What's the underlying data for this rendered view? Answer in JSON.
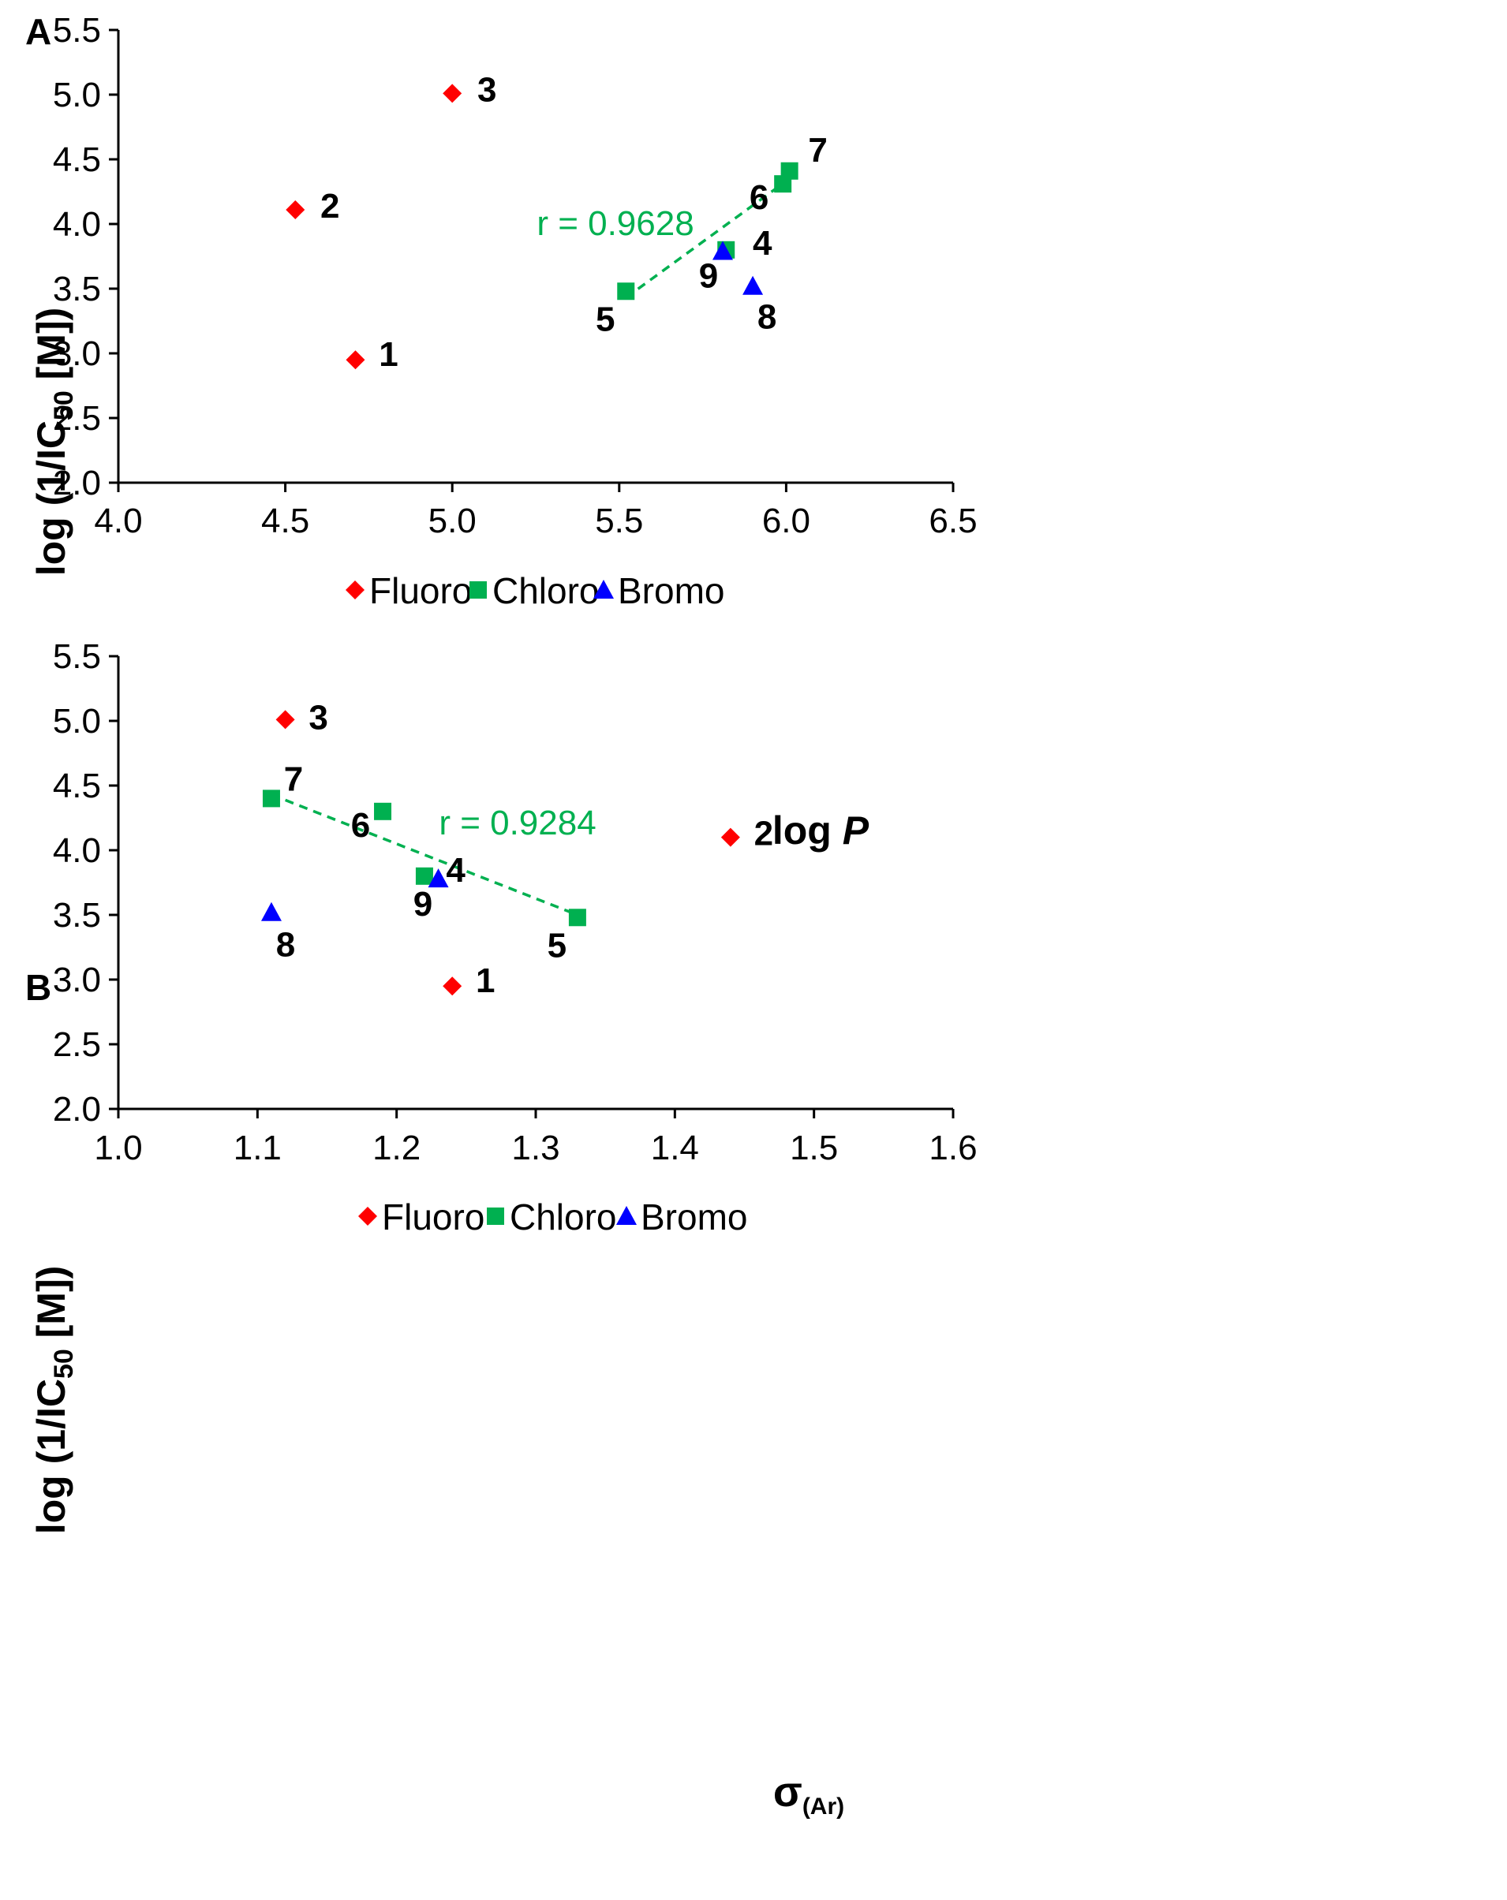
{
  "colors": {
    "fluoro": "#ff0000",
    "chloro": "#00b050",
    "bromo": "#0000ff",
    "trend": "#00b050"
  },
  "legend": [
    "Fluoro",
    "Chloro",
    "Bromo"
  ],
  "chart_data": [
    {
      "type": "scatter",
      "panel": "A",
      "xlabel_main": "log ",
      "xlabel_italic": "P",
      "ylabel_parts": [
        "log (1/IC",
        "50",
        " [M])"
      ],
      "xlim": [
        4.0,
        6.5
      ],
      "ylim": [
        2.0,
        5.5
      ],
      "x_ticks": [
        "4.0",
        "4.5",
        "5.0",
        "5.5",
        "6.0",
        "6.5"
      ],
      "y_ticks": [
        "2.0",
        "2.5",
        "3.0",
        "3.5",
        "4.0",
        "4.5",
        "5.0",
        "5.5"
      ],
      "series": [
        {
          "name": "Fluoro",
          "marker": "diamond",
          "points": [
            {
              "x": 4.71,
              "y": 2.95,
              "label": "1"
            },
            {
              "x": 4.53,
              "y": 4.11,
              "label": "2"
            },
            {
              "x": 5.0,
              "y": 5.01,
              "label": "3"
            }
          ]
        },
        {
          "name": "Chloro",
          "marker": "square",
          "points": [
            {
              "x": 5.82,
              "y": 3.8,
              "label": "4"
            },
            {
              "x": 5.52,
              "y": 3.48,
              "label": "5"
            },
            {
              "x": 5.99,
              "y": 4.31,
              "label": "6"
            },
            {
              "x": 6.01,
              "y": 4.41,
              "label": "7"
            }
          ]
        },
        {
          "name": "Bromo",
          "marker": "triangle",
          "points": [
            {
              "x": 5.9,
              "y": 3.52,
              "label": "8"
            },
            {
              "x": 5.81,
              "y": 3.79,
              "label": "9"
            }
          ]
        }
      ],
      "trendline": {
        "x": [
          5.52,
          6.01
        ],
        "y": [
          3.43,
          4.35
        ],
        "r_label": "r = 0.9628"
      }
    },
    {
      "type": "scatter",
      "panel": "B",
      "xlabel_main": "σ",
      "xlabel_sub": "(Ar)",
      "ylabel_parts": [
        "log (1/IC",
        "50",
        " [M])"
      ],
      "xlim": [
        1.0,
        1.6
      ],
      "ylim": [
        2.0,
        5.5
      ],
      "x_ticks": [
        "1.0",
        "1.1",
        "1.2",
        "1.3",
        "1.4",
        "1.5",
        "1.6"
      ],
      "y_ticks": [
        "2.0",
        "2.5",
        "3.0",
        "3.5",
        "4.0",
        "4.5",
        "5.0",
        "5.5"
      ],
      "series": [
        {
          "name": "Fluoro",
          "marker": "diamond",
          "points": [
            {
              "x": 1.24,
              "y": 2.95,
              "label": "1"
            },
            {
              "x": 1.44,
              "y": 4.1,
              "label": "2"
            },
            {
              "x": 1.12,
              "y": 5.01,
              "label": "3"
            }
          ]
        },
        {
          "name": "Chloro",
          "marker": "square",
          "points": [
            {
              "x": 1.33,
              "y": 3.48,
              "label": "5"
            },
            {
              "x": 1.19,
              "y": 4.3,
              "label": "6"
            },
            {
              "x": 1.11,
              "y": 4.4,
              "label": "7"
            },
            {
              "x": 1.22,
              "y": 3.8,
              "label": "9"
            }
          ]
        },
        {
          "name": "Bromo",
          "marker": "triangle",
          "points": [
            {
              "x": 1.23,
              "y": 3.78,
              "label": "4"
            },
            {
              "x": 1.11,
              "y": 3.52,
              "label": "8"
            }
          ]
        }
      ],
      "trendline": {
        "x": [
          1.11,
          1.33
        ],
        "y": [
          4.43,
          3.5
        ],
        "r_label": "r = 0.9284"
      }
    }
  ]
}
